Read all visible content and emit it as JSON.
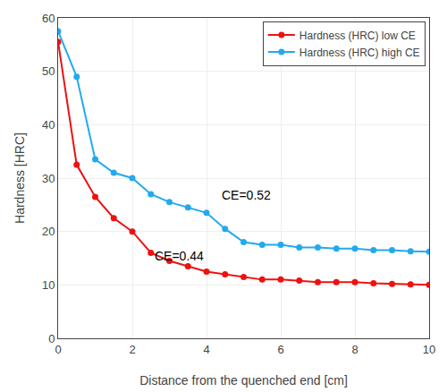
{
  "chart_data": {
    "type": "line",
    "xlabel": "Distance from the quenched end [cm]",
    "ylabel": "Hardness [HRC]",
    "x": [
      0,
      0.5,
      1.0,
      1.5,
      2.0,
      2.5,
      3.0,
      3.5,
      4.0,
      4.5,
      5.0,
      5.5,
      6.0,
      6.5,
      7.0,
      7.5,
      8.0,
      8.5,
      9.0,
      9.5,
      10.0
    ],
    "series": [
      {
        "name": "Hardness (HRC) low CE",
        "color": "#ee1111",
        "values": [
          55.5,
          32.5,
          26.5,
          22.5,
          20.0,
          16.0,
          14.5,
          13.5,
          12.5,
          12.0,
          11.5,
          11.0,
          11.0,
          10.8,
          10.5,
          10.5,
          10.5,
          10.3,
          10.2,
          10.1,
          10.0
        ]
      },
      {
        "name": "Hardness (HRC) high CE",
        "color": "#22aaee",
        "values": [
          57.5,
          49.0,
          33.5,
          31.0,
          30.0,
          27.0,
          25.5,
          24.5,
          23.5,
          20.5,
          18.0,
          17.5,
          17.5,
          17.0,
          17.0,
          16.8,
          16.8,
          16.5,
          16.5,
          16.3,
          16.2
        ]
      }
    ],
    "annotations": [
      {
        "x": 2.55,
        "y": 13.8,
        "text": "CE=0.44"
      },
      {
        "x": 4.35,
        "y": 25.2,
        "text": "CE=0.52"
      }
    ],
    "xlim": [
      0,
      10
    ],
    "ylim": [
      0,
      60
    ],
    "xticks": [
      0,
      2,
      4,
      6,
      8,
      10
    ],
    "yticks": [
      0,
      10,
      20,
      30,
      40,
      50,
      60
    ],
    "grid": true,
    "legend": "upper right",
    "marker": "circle",
    "line_style": "solid"
  }
}
